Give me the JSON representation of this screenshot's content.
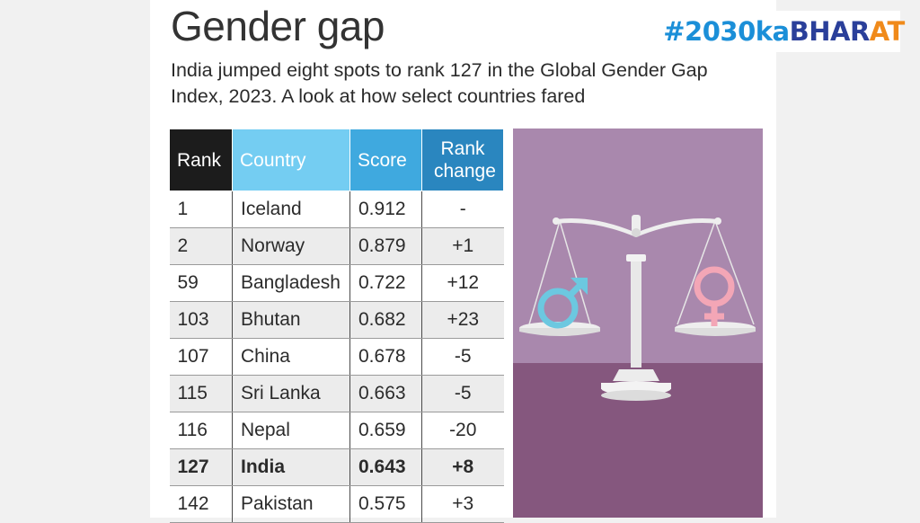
{
  "title": "Gender gap",
  "subtitle": "India jumped eight spots to rank 127 in the Global Gender Gap Index, 2023. A look at how select countries fared",
  "hashtag": {
    "part1": "#2030ka",
    "part2": "BHAR",
    "part3": "AT"
  },
  "colors": {
    "rank_header": "#1c1c1c",
    "country_header": "#74cdf2",
    "score_header": "#3fa9df",
    "change_header": "#2a86bf",
    "illustration_top": "#a988ad",
    "illustration_bottom": "#85577e",
    "male_symbol": "#6cc8e0",
    "female_symbol": "#f3a6b6"
  },
  "illustration": {
    "icons": [
      "balance-scale-icon",
      "male-symbol-icon",
      "female-symbol-icon"
    ]
  },
  "chart_data": {
    "type": "table",
    "columns": [
      "Rank",
      "Country",
      "Score",
      "Rank change"
    ],
    "rows": [
      {
        "rank": "1",
        "country": "Iceland",
        "score": "0.912",
        "change": "-"
      },
      {
        "rank": "2",
        "country": "Norway",
        "score": "0.879",
        "change": "+1"
      },
      {
        "rank": "59",
        "country": "Bangladesh",
        "score": "0.722",
        "change": "+12"
      },
      {
        "rank": "103",
        "country": "Bhutan",
        "score": "0.682",
        "change": "+23"
      },
      {
        "rank": "107",
        "country": "China",
        "score": "0.678",
        "change": "-5"
      },
      {
        "rank": "115",
        "country": "Sri Lanka",
        "score": "0.663",
        "change": "-5"
      },
      {
        "rank": "116",
        "country": "Nepal",
        "score": "0.659",
        "change": "-20"
      },
      {
        "rank": "127",
        "country": "India",
        "score": "0.643",
        "change": "+8",
        "highlight": true
      },
      {
        "rank": "142",
        "country": "Pakistan",
        "score": "0.575",
        "change": "+3"
      }
    ]
  }
}
